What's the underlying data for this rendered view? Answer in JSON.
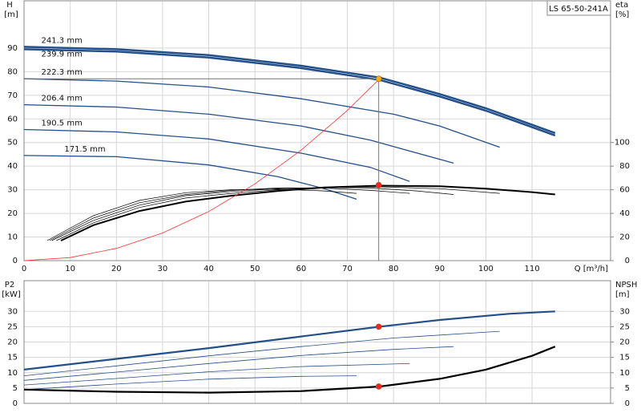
{
  "chart_data": [
    {
      "type": "line",
      "title": "LS 65-50-241A",
      "y_label": "H",
      "y_unit": "[m]",
      "y2_label": "eta",
      "y2_unit": "[%]",
      "x_label": "Q [m³/h]",
      "xlim": [
        0,
        127
      ],
      "xticks": [
        0,
        10,
        20,
        30,
        40,
        50,
        60,
        70,
        80,
        90,
        100,
        110
      ],
      "ylim": [
        0,
        110
      ],
      "yticks": [
        0,
        10,
        20,
        30,
        40,
        50,
        60,
        70,
        80,
        90
      ],
      "y2lim": [
        0,
        220
      ],
      "y2ticks": [
        0,
        20,
        40,
        60,
        80,
        100
      ],
      "grid": true,
      "series": [
        {
          "name": "241.3 mm",
          "color": "#24508a",
          "width": 2.5,
          "x": [
            0,
            20,
            40,
            60,
            77,
            90,
            100,
            110,
            115
          ],
          "values": [
            90.5,
            89.5,
            87,
            82.5,
            77.5,
            70.5,
            64.5,
            57.5,
            54
          ]
        },
        {
          "name": "239.9 mm",
          "color": "#24508a",
          "width": 2.5,
          "x": [
            0,
            20,
            40,
            60,
            77,
            90,
            100,
            110,
            115
          ],
          "values": [
            89.5,
            88.5,
            86,
            81.5,
            76.5,
            69.5,
            63.5,
            56.5,
            53
          ]
        },
        {
          "name": "222.3 mm",
          "color": "#24508a",
          "width": 1.3,
          "x": [
            0,
            20,
            40,
            60,
            80,
            90,
            103
          ],
          "values": [
            77,
            76,
            73.5,
            68.5,
            62,
            57,
            48
          ]
        },
        {
          "name": "206.4 mm",
          "color": "#24508a",
          "width": 1.3,
          "x": [
            0,
            20,
            40,
            60,
            75,
            93
          ],
          "values": [
            66,
            65,
            62,
            57,
            51,
            41.3
          ]
        },
        {
          "name": "190.5 mm",
          "color": "#24508a",
          "width": 1.3,
          "x": [
            0,
            20,
            40,
            60,
            75,
            83.5
          ],
          "values": [
            55.5,
            54.5,
            51.5,
            45.5,
            39.5,
            33.5
          ]
        },
        {
          "name": "171.5 mm",
          "color": "#24508a",
          "width": 1.3,
          "x": [
            0,
            20,
            40,
            55,
            65,
            72
          ],
          "values": [
            44.5,
            44,
            40.5,
            35.5,
            30.5,
            26
          ]
        },
        {
          "color": "#000000",
          "width": 2,
          "axis": "y2",
          "x": [
            8,
            15,
            25,
            35,
            45,
            55,
            65,
            77,
            90,
            100,
            110,
            115
          ],
          "values": [
            17,
            30,
            42,
            50,
            55,
            59,
            62,
            63.5,
            63,
            61,
            58,
            56
          ]
        },
        {
          "color": "#000000",
          "width": 0.7,
          "axis": "y2",
          "x": [
            7,
            15,
            25,
            35,
            45,
            55,
            65,
            77,
            90,
            103
          ],
          "values": [
            17,
            32,
            45,
            53,
            57,
            60,
            62,
            62.5,
            61,
            57
          ]
        },
        {
          "color": "#000000",
          "width": 0.7,
          "axis": "y2",
          "x": [
            6,
            15,
            25,
            35,
            45,
            55,
            65,
            75,
            85,
            93
          ],
          "values": [
            17,
            34,
            47,
            55,
            58.5,
            61,
            62,
            61.5,
            59,
            56
          ]
        },
        {
          "color": "#000000",
          "width": 0.7,
          "axis": "y2",
          "x": [
            5.5,
            15,
            25,
            35,
            45,
            55,
            65,
            75,
            83.5
          ],
          "values": [
            17,
            36,
            49,
            56,
            59.5,
            61.5,
            61.5,
            59.5,
            57
          ]
        },
        {
          "color": "#000000",
          "width": 0.7,
          "axis": "y2",
          "x": [
            5,
            15,
            25,
            35,
            45,
            55,
            65,
            72
          ],
          "values": [
            17,
            38,
            51,
            57.5,
            60,
            60.5,
            59,
            57
          ]
        },
        {
          "color": "#ff3030",
          "width": 0.8,
          "x": [
            0,
            10,
            20,
            30,
            40,
            50,
            60,
            70,
            77
          ],
          "values": [
            0,
            1.3,
            5.2,
            11.7,
            20.8,
            32.5,
            46.8,
            63.6,
            77
          ]
        }
      ],
      "points": [
        {
          "x": 76.8,
          "y": 77,
          "color": "#ffb000",
          "guides": true
        },
        {
          "x": 76.8,
          "y": 64,
          "axis": "y2",
          "color": "#ff2020"
        }
      ]
    },
    {
      "type": "line",
      "y_label": "P2",
      "y_unit": "[kW]",
      "y2_label": "NPSH",
      "y2_unit": "[m]",
      "xlim": [
        0,
        127
      ],
      "xticks": [
        0,
        10,
        20,
        30,
        40,
        50,
        60,
        70,
        80,
        90,
        100,
        110
      ],
      "show_xtick_labels": false,
      "ylim": [
        0,
        40
      ],
      "yticks": [
        0,
        5,
        10,
        15,
        20,
        25,
        30
      ],
      "y2lim": [
        0,
        40
      ],
      "y2ticks": [
        0,
        5,
        10,
        15,
        20,
        25,
        30
      ],
      "grid": true,
      "series": [
        {
          "color": "#24508a",
          "width": 2.2,
          "x": [
            0,
            20,
            40,
            60,
            77,
            90,
            105,
            115
          ],
          "values": [
            11,
            14.5,
            18,
            21.8,
            25,
            27.2,
            29.2,
            30
          ]
        },
        {
          "color": "#24508a",
          "width": 0.8,
          "x": [
            0,
            20,
            40,
            60,
            80,
            103
          ],
          "values": [
            9,
            12.2,
            15.5,
            18.5,
            21.3,
            23.5
          ]
        },
        {
          "color": "#24508a",
          "width": 0.8,
          "x": [
            0,
            20,
            40,
            60,
            80,
            93
          ],
          "values": [
            7.5,
            10.2,
            13,
            15.6,
            17.6,
            18.5
          ]
        },
        {
          "color": "#24508a",
          "width": 0.8,
          "x": [
            0,
            20,
            40,
            60,
            83.5
          ],
          "values": [
            6,
            8.1,
            10.3,
            12,
            13
          ]
        },
        {
          "color": "#24508a",
          "width": 0.8,
          "x": [
            0,
            20,
            40,
            60,
            72
          ],
          "values": [
            4.5,
            6.3,
            7.9,
            8.8,
            9
          ]
        },
        {
          "color": "#000000",
          "width": 2.2,
          "axis": "y2",
          "x": [
            0,
            20,
            40,
            60,
            77,
            90,
            100,
            110,
            115
          ],
          "values": [
            4.5,
            3.8,
            3.5,
            4,
            5.5,
            8,
            11,
            15.5,
            18.5
          ]
        }
      ],
      "points": [
        {
          "x": 76.8,
          "y": 25,
          "color": "#ff2020"
        },
        {
          "x": 76.8,
          "y": 5.5,
          "axis": "y2",
          "color": "#ff2020"
        }
      ]
    }
  ]
}
